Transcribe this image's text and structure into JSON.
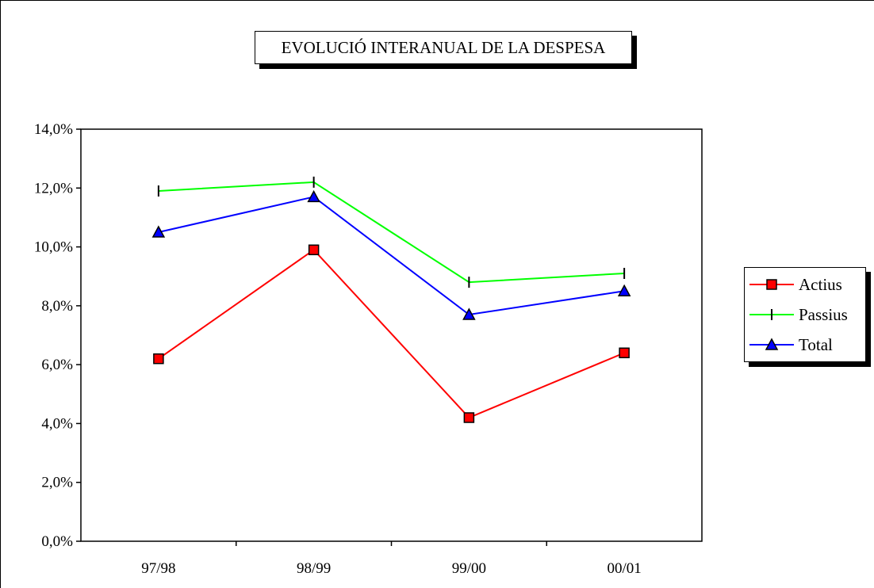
{
  "chart_data": {
    "type": "line",
    "title": "EVOLUCIÓ INTERANUAL DE LA DESPESA",
    "xlabel": "",
    "ylabel": "",
    "categories": [
      "97/98",
      "98/99",
      "99/00",
      "00/01"
    ],
    "ylim": [
      0,
      14
    ],
    "yticks": [
      0,
      2,
      4,
      6,
      8,
      10,
      12,
      14
    ],
    "ytick_labels": [
      "0,0%",
      "2,0%",
      "4,0%",
      "6,0%",
      "8,0%",
      "10,0%",
      "12,0%",
      "14,0%"
    ],
    "y_unit": "%",
    "grid": false,
    "legend": "right",
    "series": [
      {
        "name": "Actius",
        "values": [
          6.2,
          9.9,
          4.2,
          6.4
        ],
        "color": "#ff0000",
        "marker": "square"
      },
      {
        "name": "Passius",
        "values": [
          11.9,
          12.2,
          8.8,
          9.1
        ],
        "color": "#00ff00",
        "marker": "dash"
      },
      {
        "name": "Total",
        "values": [
          10.5,
          11.7,
          7.7,
          8.5
        ],
        "color": "#0000ff",
        "marker": "triangle"
      }
    ]
  }
}
